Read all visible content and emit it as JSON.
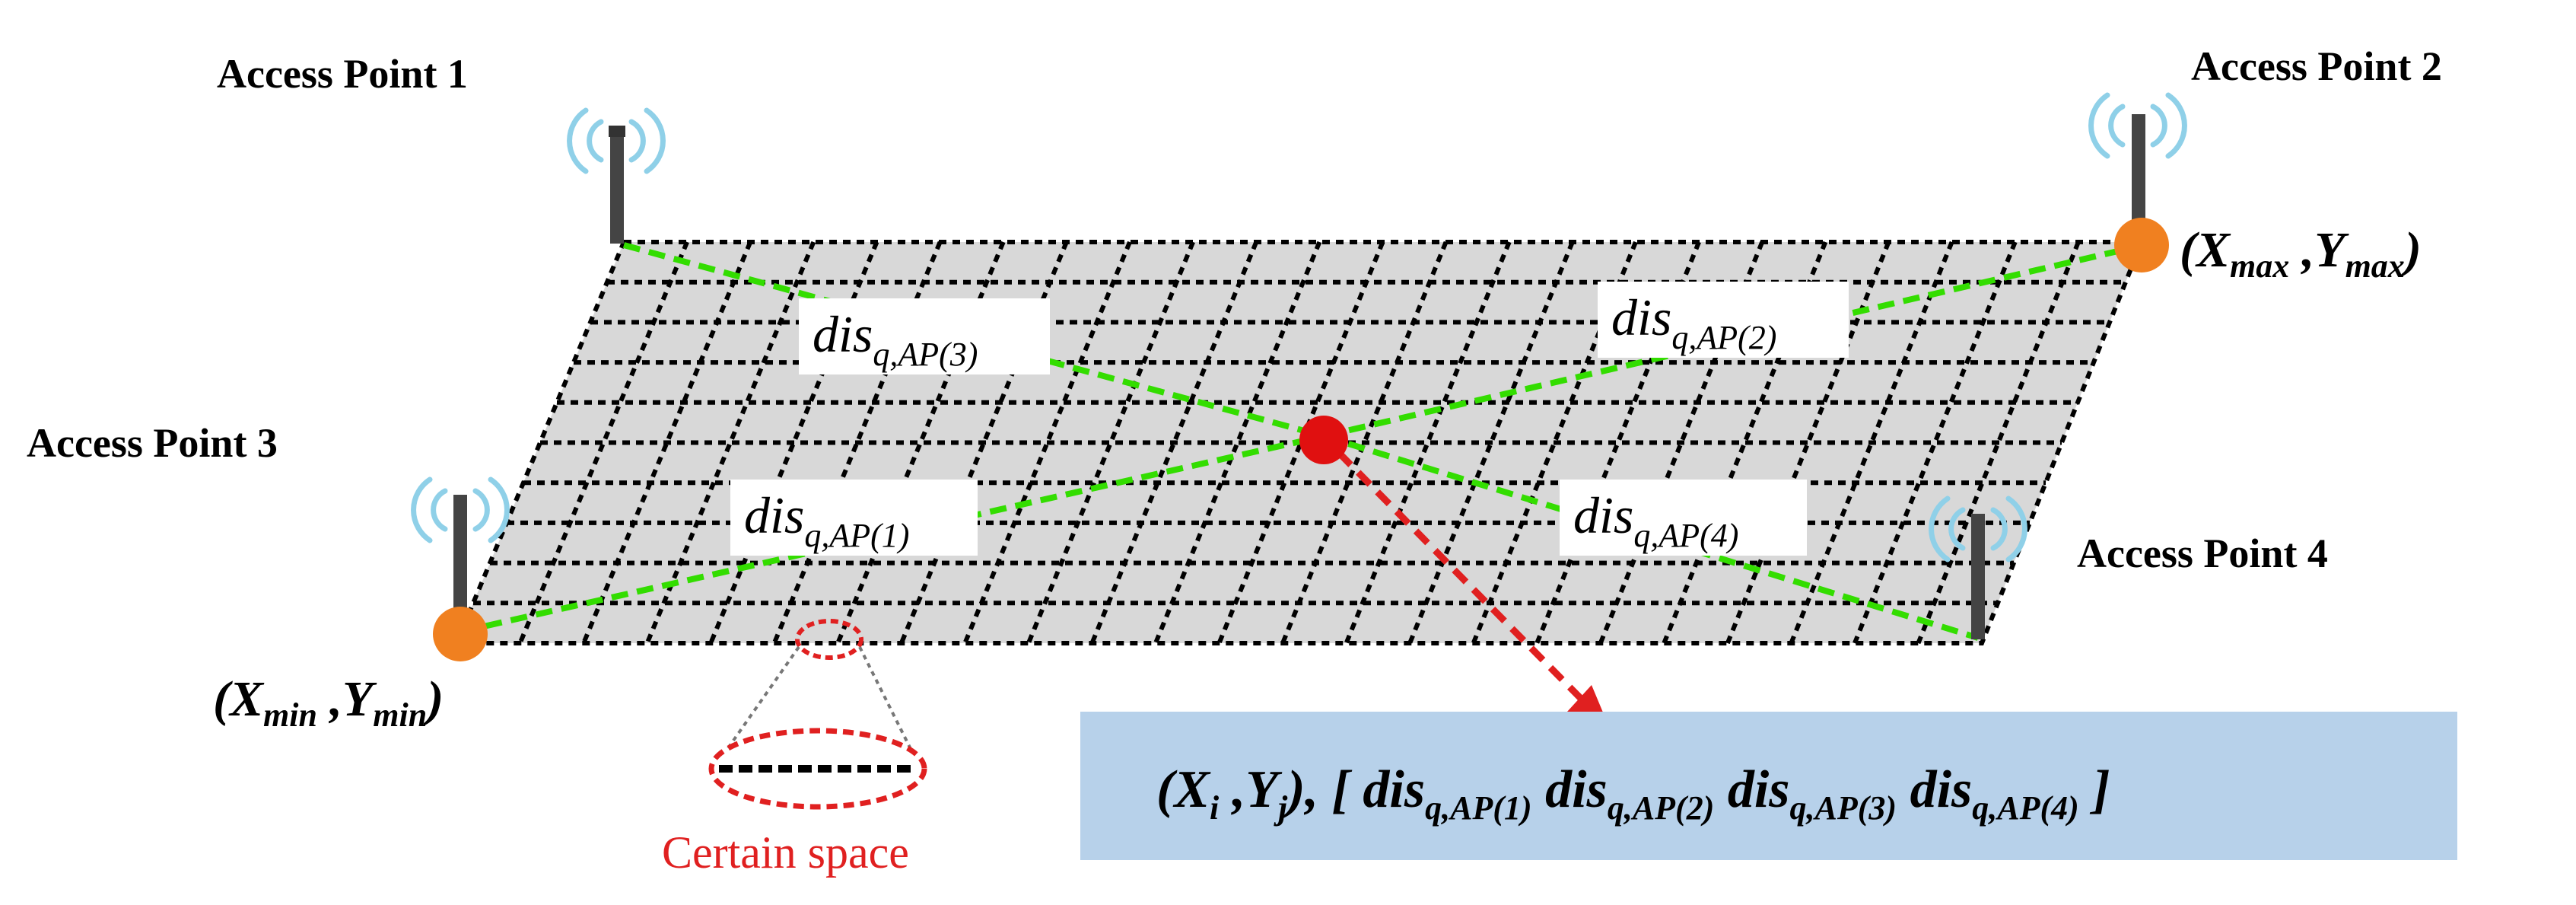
{
  "access_points": [
    {
      "name": "Access Point 1"
    },
    {
      "name": "Access Point 2"
    },
    {
      "name": "Access Point 3"
    },
    {
      "name": "Access Point 4"
    }
  ],
  "corners": {
    "max": {
      "x_base": "X",
      "x_sub": "max",
      "y_base": "Y",
      "y_sub": "max"
    },
    "min": {
      "x_base": "X",
      "x_sub": "min",
      "y_base": "Y",
      "y_sub": "min"
    }
  },
  "distances": [
    {
      "base": "dis",
      "sub": "q,AP(3)"
    },
    {
      "base": "dis",
      "sub": "q,AP(2)"
    },
    {
      "base": "dis",
      "sub": "q,AP(1)"
    },
    {
      "base": "dis",
      "sub": "q,AP(4)"
    }
  ],
  "formula": {
    "xi_base": "X",
    "xi_sub": "i",
    "yj_base": "Y",
    "yj_sub": "j",
    "terms": [
      {
        "base": "dis",
        "sub": "q,AP(1)"
      },
      {
        "base": "dis",
        "sub": "q,AP(2)"
      },
      {
        "base": "dis",
        "sub": "q,AP(3)"
      },
      {
        "base": "dis",
        "sub": "q,AP(4)"
      }
    ]
  },
  "caption": "Certain space",
  "colors": {
    "grid_fill": "#d8d8d8",
    "grid_line": "#000000",
    "distance_line": "#33dd00",
    "target_point": "#e01010",
    "corner_point": "#f08020",
    "arrow": "#e02020",
    "wifi": "#8fd0e8",
    "antenna": "#444444",
    "formula_box": "#b7d1ea",
    "caption": "#e02020"
  }
}
